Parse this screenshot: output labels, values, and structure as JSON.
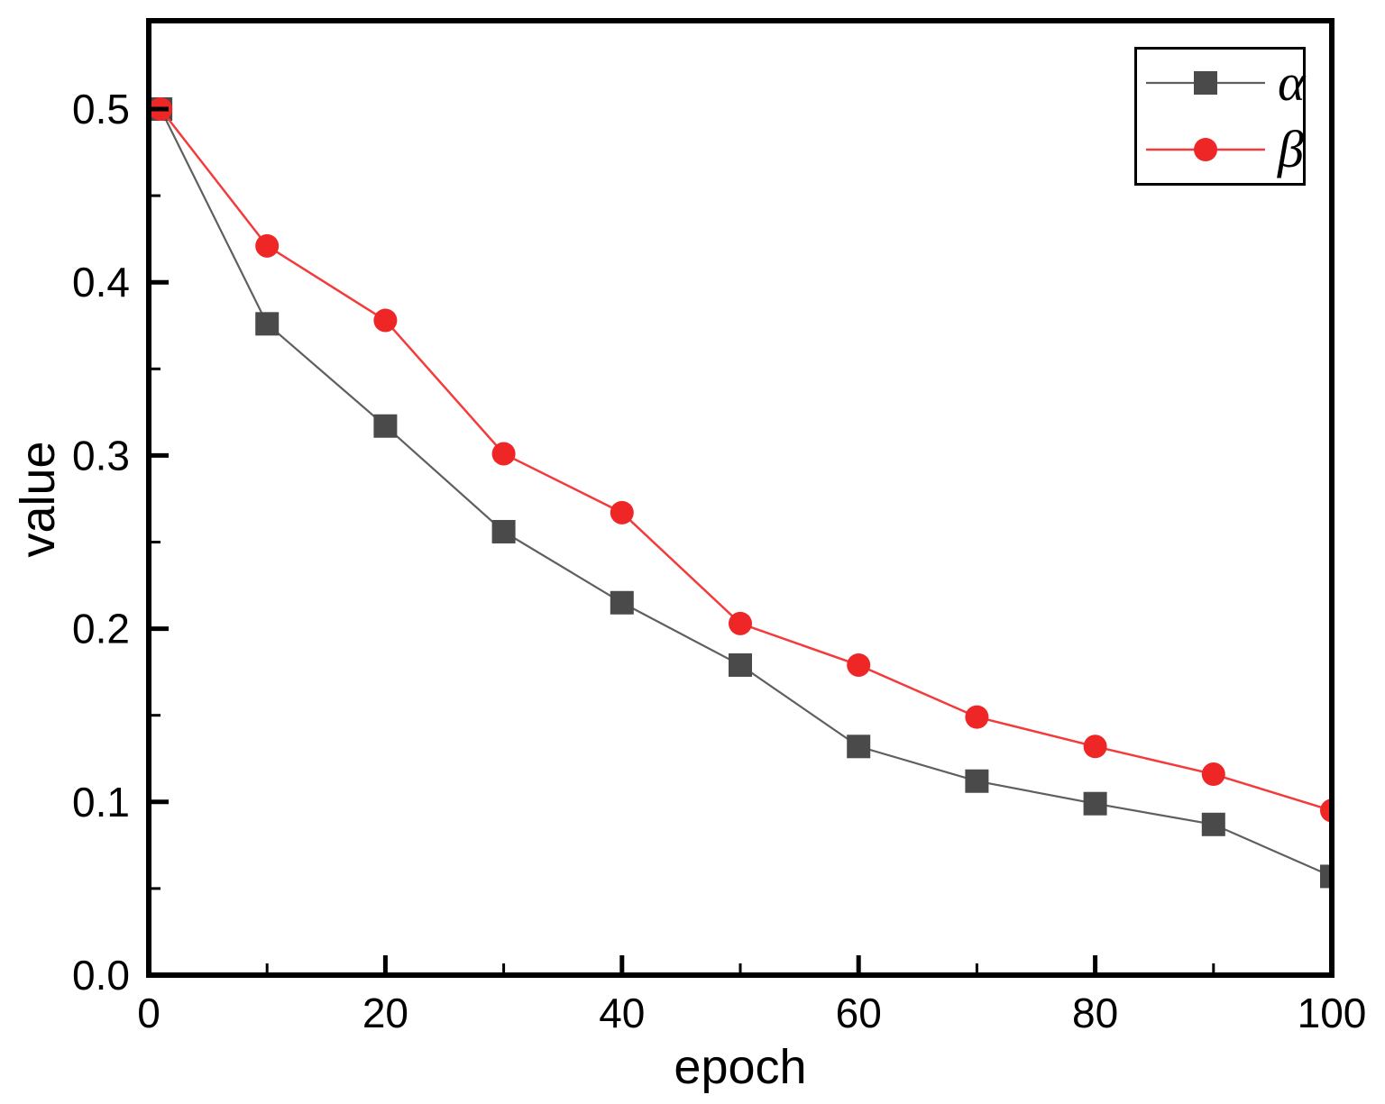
{
  "figure": {
    "background": "#ffffff",
    "frame_color": "#000000",
    "tick_label_color": "#000000"
  },
  "chart_data": {
    "type": "line",
    "title": "",
    "xlabel": "epoch",
    "ylabel": "value",
    "xlim": [
      0,
      100
    ],
    "ylim": [
      0.0,
      0.5
    ],
    "grid": false,
    "legend_position": "top-right",
    "x_major_ticks": [
      0,
      20,
      40,
      60,
      80,
      100
    ],
    "x_tick_labels": [
      "0",
      "20",
      "40",
      "60",
      "80",
      "100"
    ],
    "x_minor_ticks": [
      10,
      30,
      50,
      70,
      90
    ],
    "y_major_ticks": [
      0.0,
      0.1,
      0.2,
      0.3,
      0.4,
      0.5
    ],
    "y_tick_labels": [
      "0.0",
      "0.1",
      "0.2",
      "0.3",
      "0.4",
      "0.5"
    ],
    "y_minor_ticks": [
      0.05,
      0.15,
      0.25,
      0.35,
      0.45
    ],
    "x": [
      1,
      10,
      20,
      30,
      40,
      50,
      60,
      70,
      80,
      90,
      100
    ],
    "series": [
      {
        "name": "α",
        "marker": "square",
        "marker_color": "#4a4a4a",
        "line_color": "#5f5f5f",
        "values": [
          0.5,
          0.376,
          0.317,
          0.256,
          0.215,
          0.179,
          0.132,
          0.112,
          0.099,
          0.087,
          0.057
        ]
      },
      {
        "name": "β",
        "marker": "circle",
        "marker_color": "#ee2626",
        "line_color": "#f43b3b",
        "values": [
          0.5,
          0.421,
          0.378,
          0.301,
          0.267,
          0.203,
          0.179,
          0.149,
          0.132,
          0.116,
          0.095
        ]
      }
    ]
  }
}
